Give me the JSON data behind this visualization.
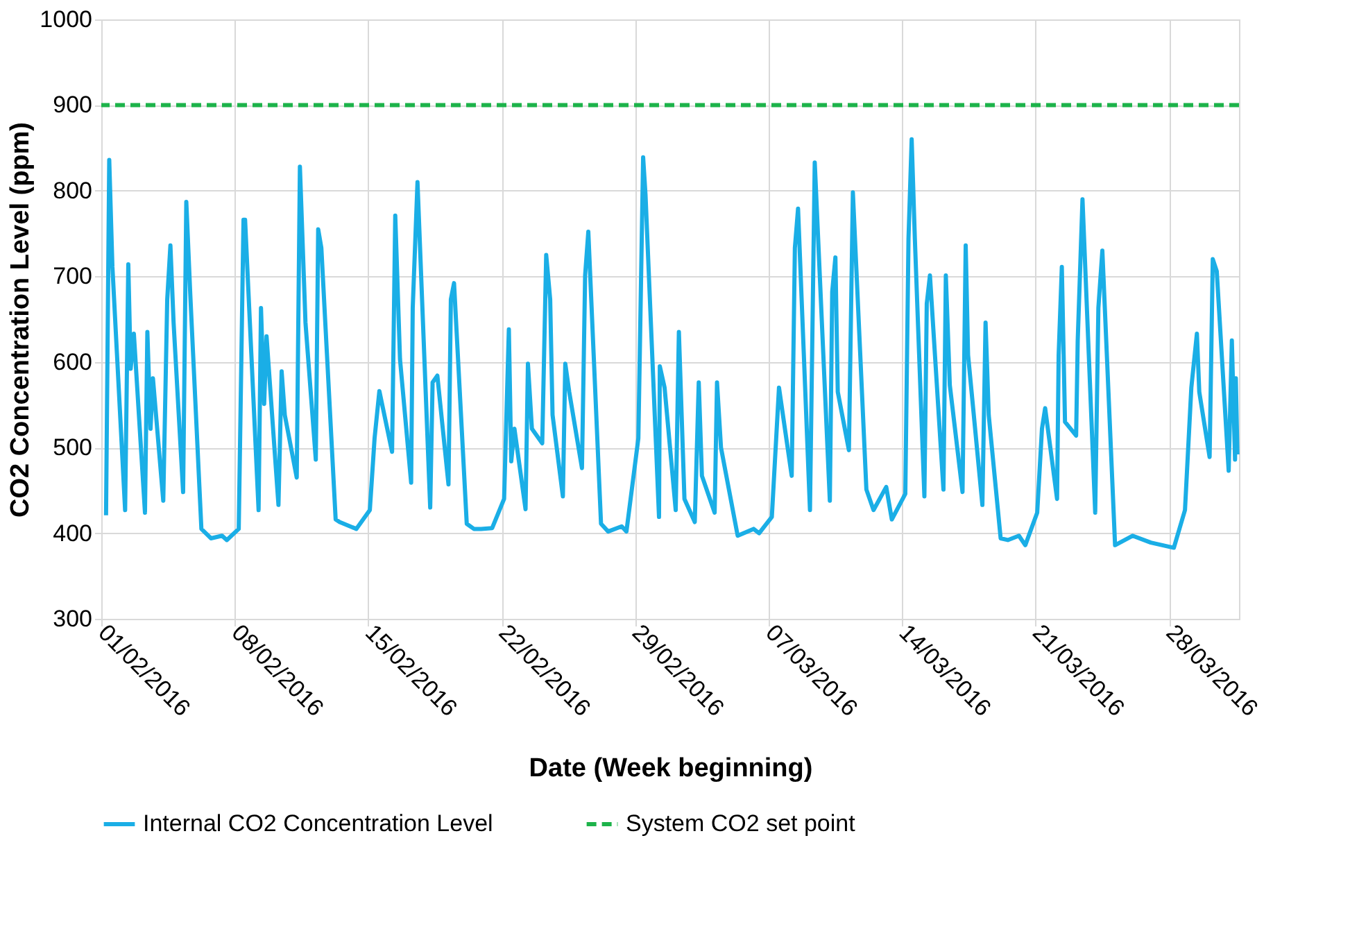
{
  "chart_data": {
    "type": "line",
    "xlabel": "Date (Week beginning)",
    "ylabel": "CO2 Concentration Level (ppm)",
    "x": [
      "2016-02-01T06:00",
      "2016-02-01T10:00",
      "2016-02-01T14:00",
      "2016-02-02T06:00",
      "2016-02-02T10:00",
      "2016-02-02T13:00",
      "2016-02-02T17:00",
      "2016-02-03T07:00",
      "2016-02-03T10:00",
      "2016-02-03T14:00",
      "2016-02-03T17:00",
      "2016-02-04T06:00",
      "2016-02-04T11:00",
      "2016-02-04T15:00",
      "2016-02-04T19:00",
      "2016-02-05T07:00",
      "2016-02-05T11:00",
      "2016-02-05T16:00",
      "2016-02-06T06:00",
      "2016-02-06T18:00",
      "2016-02-07T08:00",
      "2016-02-07T14:00",
      "2016-02-08T05:00",
      "2016-02-08T11:00",
      "2016-02-08T13:00",
      "2016-02-09T06:00",
      "2016-02-09T09:00",
      "2016-02-09T13:00",
      "2016-02-09T16:00",
      "2016-02-10T07:00",
      "2016-02-10T11:00",
      "2016-02-10T15:00",
      "2016-02-11T06:00",
      "2016-02-11T10:00",
      "2016-02-11T17:00",
      "2016-02-12T06:00",
      "2016-02-12T09:00",
      "2016-02-12T13:00",
      "2016-02-13T07:00",
      "2016-02-13T12:00",
      "2016-02-14T09:00",
      "2016-02-15T02:00",
      "2016-02-15T08:00",
      "2016-02-15T14:00",
      "2016-02-16T06:00",
      "2016-02-16T10:00",
      "2016-02-16T16:00",
      "2016-02-17T06:00",
      "2016-02-17T08:00",
      "2016-02-17T14:00",
      "2016-02-18T06:00",
      "2016-02-18T09:00",
      "2016-02-18T15:00",
      "2016-02-19T05:00",
      "2016-02-19T08:00",
      "2016-02-19T12:00",
      "2016-02-20T04:00",
      "2016-02-20T13:00",
      "2016-02-20T22:00",
      "2016-02-21T12:00",
      "2016-02-22T03:00",
      "2016-02-22T09:00",
      "2016-02-22T12:00",
      "2016-02-22T16:00",
      "2016-02-23T06:00",
      "2016-02-23T09:00",
      "2016-02-23T14:00",
      "2016-02-24T03:00",
      "2016-02-24T08:00",
      "2016-02-24T13:00",
      "2016-02-24T16:00",
      "2016-02-25T05:00",
      "2016-02-25T08:00",
      "2016-02-25T13:00",
      "2016-02-26T05:00",
      "2016-02-26T09:00",
      "2016-02-26T13:00",
      "2016-02-27T05:00",
      "2016-02-27T14:00",
      "2016-02-28T07:00",
      "2016-02-28T13:00",
      "2016-02-29T04:00",
      "2016-02-29T10:00",
      "2016-02-29T13:00",
      "2016-03-01T06:00",
      "2016-03-01T07:00",
      "2016-03-01T13:00",
      "2016-03-02T03:00",
      "2016-03-02T07:00",
      "2016-03-02T14:00",
      "2016-03-03T03:00",
      "2016-03-03T08:00",
      "2016-03-03T12:00",
      "2016-03-04T04:00",
      "2016-03-04T07:00",
      "2016-03-04T12:00",
      "2016-03-05T09:00",
      "2016-03-06T05:00",
      "2016-03-06T12:00",
      "2016-03-07T04:00",
      "2016-03-07T13:00",
      "2016-03-08T05:00",
      "2016-03-08T09:00",
      "2016-03-08T13:00",
      "2016-03-09T04:00",
      "2016-03-09T10:00",
      "2016-03-10T05:00",
      "2016-03-10T08:00",
      "2016-03-10T12:00",
      "2016-03-10T15:00",
      "2016-03-11T05:00",
      "2016-03-11T10:00",
      "2016-03-12T03:00",
      "2016-03-12T12:00",
      "2016-03-13T04:00",
      "2016-03-13T11:00",
      "2016-03-14T04:00",
      "2016-03-14T08:00",
      "2016-03-14T12:00",
      "2016-03-14T16:00",
      "2016-03-15T04:00",
      "2016-03-15T07:00",
      "2016-03-15T11:00",
      "2016-03-16T04:00",
      "2016-03-16T07:00",
      "2016-03-16T12:00",
      "2016-03-17T04:00",
      "2016-03-17T08:00",
      "2016-03-17T11:00",
      "2016-03-18T05:00",
      "2016-03-18T09:00",
      "2016-03-18T13:00",
      "2016-03-19T04:00",
      "2016-03-19T13:00",
      "2016-03-20T03:00",
      "2016-03-20T11:00",
      "2016-03-21T02:00",
      "2016-03-21T08:00",
      "2016-03-21T12:00",
      "2016-03-22T03:00",
      "2016-03-22T05:00",
      "2016-03-22T09:00",
      "2016-03-22T13:00",
      "2016-03-23T03:00",
      "2016-03-23T05:00",
      "2016-03-23T11:00",
      "2016-03-24T03:00",
      "2016-03-24T07:00",
      "2016-03-24T12:00",
      "2016-03-25T04:00",
      "2016-03-26T02:00",
      "2016-03-27T01:00",
      "2016-03-28T06:00",
      "2016-03-28T20:00",
      "2016-03-29T04:00",
      "2016-03-29T11:00",
      "2016-03-29T14:00",
      "2016-03-30T03:00",
      "2016-03-30T07:00",
      "2016-03-30T12:00",
      "2016-03-31T03:00",
      "2016-03-31T07:00",
      "2016-03-31T11:00",
      "2016-03-31T12:00",
      "2016-03-31T14:00"
    ],
    "series": [
      {
        "name": "Internal CO2 Concentration Level",
        "color": "#1aaee6",
        "values": [
          421,
          836,
          711,
          427,
          714,
          592,
          633,
          424,
          635,
          522,
          581,
          438,
          673,
          736,
          646,
          448,
          787,
          679,
          405,
          394,
          397,
          392,
          405,
          766,
          766,
          427,
          663,
          551,
          630,
          433,
          589,
          538,
          465,
          828,
          646,
          486,
          755,
          733,
          416,
          413,
          405,
          427,
          511,
          566,
          495,
          771,
          603,
          459,
          663,
          810,
          430,
          576,
          584,
          457,
          673,
          692,
          411,
          405,
          405,
          406,
          440,
          638,
          484,
          522,
          428,
          598,
          522,
          505,
          725,
          673,
          538,
          443,
          598,
          565,
          476,
          701,
          752,
          411,
          402,
          408,
          402,
          511,
          839,
          795,
          419,
          595,
          570,
          427,
          635,
          440,
          413,
          576,
          467,
          424,
          576,
          500,
          397,
          405,
          400,
          419,
          570,
          467,
          733,
          779,
          427,
          833,
          438,
          682,
          722,
          565,
          497,
          798,
          451,
          427,
          454,
          416,
          446,
          744,
          860,
          744,
          443,
          668,
          701,
          451,
          701,
          573,
          448,
          736,
          608,
          433,
          646,
          538,
          394,
          392,
          397,
          386,
          424,
          522,
          546,
          440,
          608,
          711,
          530,
          514,
          625,
          790,
          424,
          663,
          730,
          386,
          397,
          389,
          383,
          427,
          570,
          633,
          565,
          489,
          720,
          706,
          473,
          625,
          486,
          581,
          492
        ]
      }
    ],
    "ref_lines": [
      {
        "axis": "y",
        "value": 900,
        "label": "System CO2 set point",
        "color": "#1db34a",
        "line_style": "dashed"
      }
    ],
    "xlim": [
      "2016-02-01",
      "2016-03-31T16:00"
    ],
    "xticks": [
      {
        "value": "2016-02-01",
        "label": "01/02/2016"
      },
      {
        "value": "2016-02-08",
        "label": "08/02/2016"
      },
      {
        "value": "2016-02-15",
        "label": "15/02/2016"
      },
      {
        "value": "2016-02-22",
        "label": "22/02/2016"
      },
      {
        "value": "2016-02-29",
        "label": "29/02/2016"
      },
      {
        "value": "2016-03-07",
        "label": "07/03/2016"
      },
      {
        "value": "2016-03-14",
        "label": "14/03/2016"
      },
      {
        "value": "2016-03-21",
        "label": "21/03/2016"
      },
      {
        "value": "2016-03-28",
        "label": "28/03/2016"
      }
    ],
    "ylim": [
      300,
      1000
    ],
    "yticks": [
      300,
      400,
      500,
      600,
      700,
      800,
      900,
      1000
    ],
    "grid": true,
    "legend": "bottom",
    "line_style": "solid",
    "marker": "none"
  }
}
